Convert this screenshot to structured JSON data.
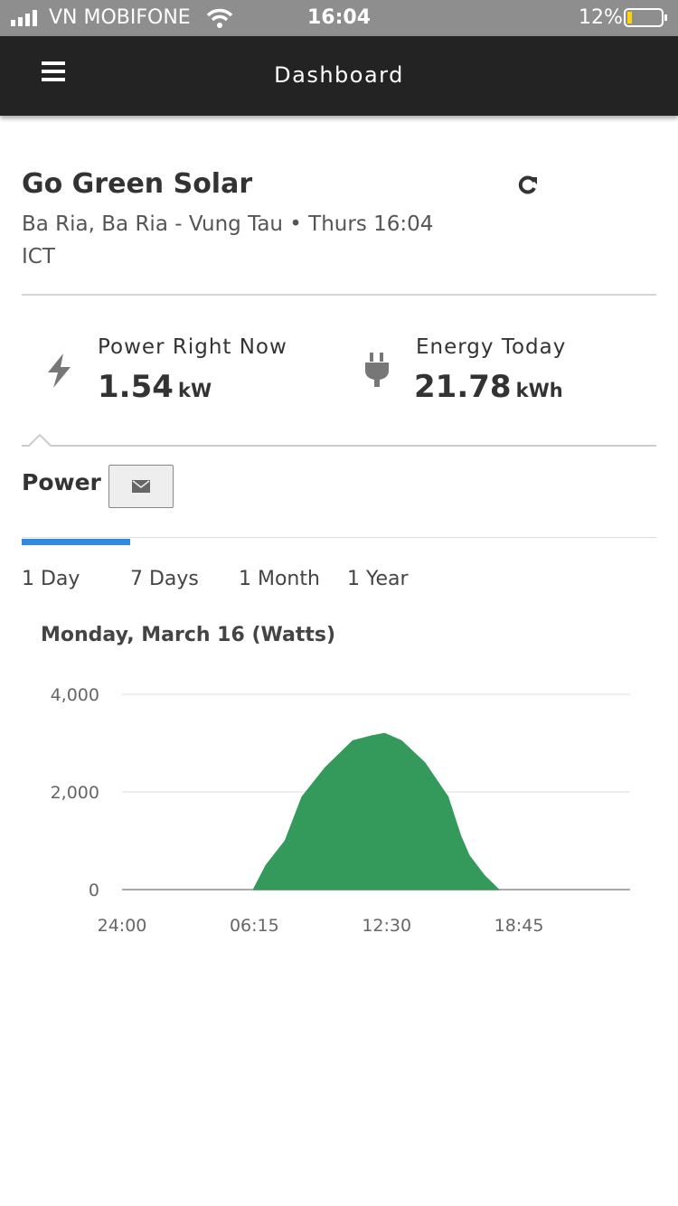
{
  "status_bar": {
    "carrier": "VN MOBIFONE",
    "time": "16:04",
    "battery": "12%"
  },
  "header": {
    "title": "Dashboard"
  },
  "site": {
    "name": "Go Green Solar",
    "location": "Ba Ria, Ba Ria - Vung Tau • Thurs 16:04 ICT"
  },
  "metrics": [
    {
      "label": "Power Right Now",
      "value": "1.54",
      "unit": "kW"
    },
    {
      "label": "Energy Today",
      "value": "21.78",
      "unit": "kWh"
    }
  ],
  "section": {
    "title": "Power"
  },
  "tabs": [
    "1 Day",
    "7 Days",
    "1 Month",
    "1 Year"
  ],
  "chart_data": {
    "type": "area",
    "title": "Monday, March 16 (Watts)",
    "color": "#339a5c",
    "x": [
      6.2,
      6.8,
      7.7,
      8.5,
      9.6,
      10.9,
      11.8,
      12.4,
      13.2,
      14.3,
      15.4,
      16.0,
      16.4,
      17.1,
      17.8
    ],
    "values": [
      0,
      500,
      1000,
      1900,
      2500,
      3050,
      3150,
      3200,
      3050,
      2600,
      1900,
      1100,
      700,
      300,
      0
    ],
    "xlim": [
      0,
      24
    ],
    "xticks": [
      {
        "value": 0,
        "label": "24:00"
      },
      {
        "value": 6.25,
        "label": "06:15"
      },
      {
        "value": 12.5,
        "label": "12:30"
      },
      {
        "value": 18.75,
        "label": "18:45"
      }
    ],
    "ylim": [
      0,
      4000
    ],
    "yticks": [
      0,
      {
        "value": 2000,
        "label": "2,000"
      },
      {
        "value": 4000,
        "label": "4,000"
      }
    ],
    "grid": true
  }
}
